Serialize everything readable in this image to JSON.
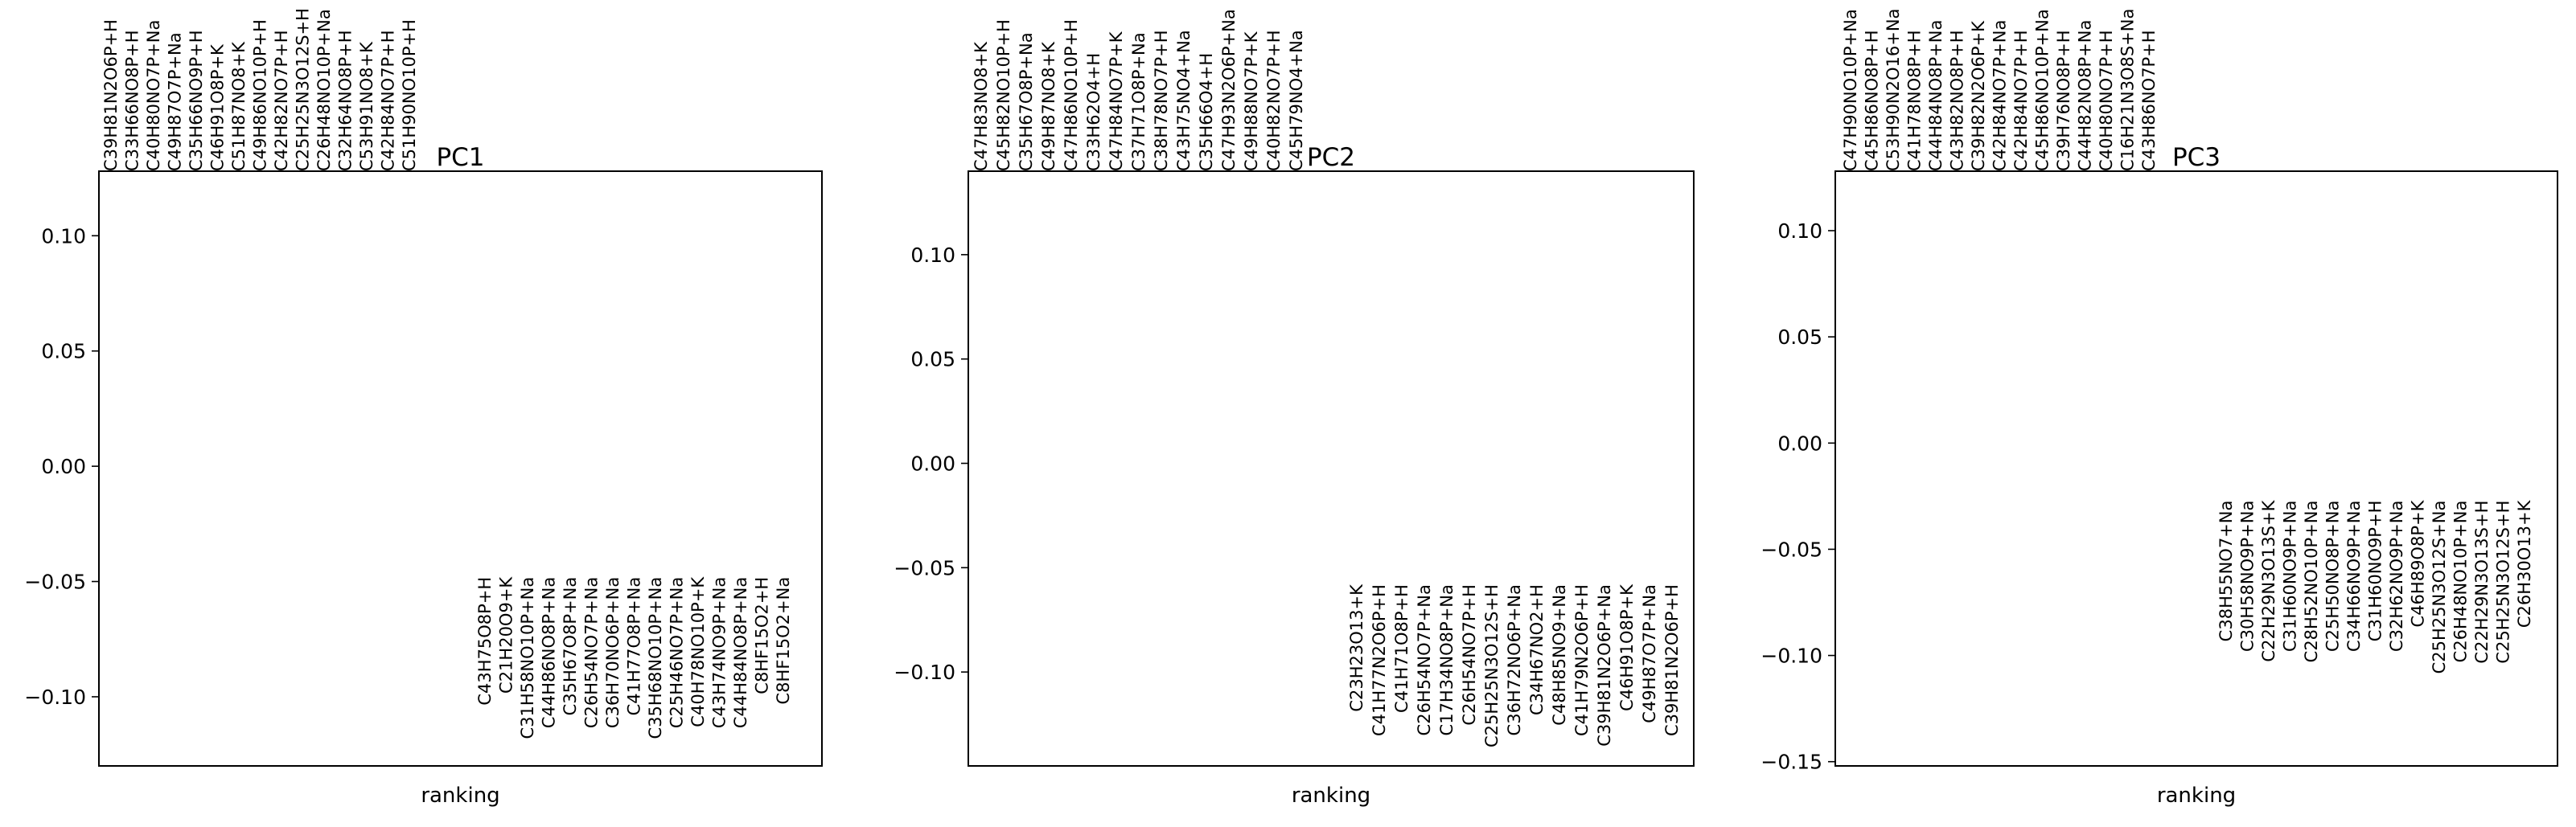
{
  "chart_data": [
    {
      "type": "scatter",
      "title": "PC1",
      "xlabel": "ranking",
      "ylabel": "",
      "ylim": [
        -0.13,
        0.128
      ],
      "yticks": [
        "0.10",
        "0.05",
        "0.00",
        "−0.05",
        "−0.10"
      ],
      "ytick_values": [
        0.1,
        0.05,
        0.0,
        -0.05,
        -0.1
      ],
      "ellipsis": "...",
      "top_labels": [
        "C39H81N2O6P+H",
        "C33H66NO8P+H",
        "C40H80NO7P+Na",
        "C49H87O7P+Na",
        "C35H66NO9P+H",
        "C46H91O8P+K",
        "C51H87NO8+K",
        "C49H86NO10P+H",
        "C42H82NO7P+H",
        "C25H25N3O12S+H",
        "C26H48NO10P+Na",
        "C32H64NO8P+H",
        "C53H91NO8+K",
        "C42H84NO7P+H",
        "C51H90NO10P+H"
      ],
      "top_values": [
        0.128,
        0.128,
        0.128,
        0.128,
        0.128,
        0.128,
        0.128,
        0.128,
        0.128,
        0.128,
        0.128,
        0.128,
        0.128,
        0.128,
        0.128
      ],
      "bottom_labels": [
        "C43H75O8P+H",
        "C21H20O9+K",
        "C31H58NO10P+Na",
        "C44H86NO8P+Na",
        "C35H67O8P+Na",
        "C26H54NO7P+Na",
        "C36H70NO6P+Na",
        "C41H77O8P+Na",
        "C35H68NO10P+Na",
        "C25H46NO7P+Na",
        "C40H78NO10P+K",
        "C43H74NO9P+Na",
        "C44H84NO8P+Na",
        "C8HF15O2+H",
        "C8HF15O2+Na"
      ],
      "bottom_values": [
        -0.048,
        -0.048,
        -0.048,
        -0.048,
        -0.048,
        -0.048,
        -0.048,
        -0.048,
        -0.048,
        -0.048,
        -0.048,
        -0.048,
        -0.048,
        -0.048,
        -0.048
      ]
    },
    {
      "type": "scatter",
      "title": "PC2",
      "xlabel": "ranking",
      "ylabel": "",
      "ylim": [
        -0.145,
        0.14
      ],
      "yticks": [
        "0.10",
        "0.05",
        "0.00",
        "−0.05",
        "−0.10"
      ],
      "ytick_values": [
        0.1,
        0.05,
        0.0,
        -0.05,
        -0.1
      ],
      "ellipsis": "...",
      "top_labels": [
        "C47H83NO8+K",
        "C45H82NO10P+H",
        "C35H67O8P+Na",
        "C49H87NO8+K",
        "C47H86NO10P+H",
        "C33H62O4+H",
        "C47H84NO7P+K",
        "C37H71O8P+Na",
        "C38H78NO7P+H",
        "C43H75NO4+Na",
        "C35H66O4+H",
        "C47H93N2O6P+Na",
        "C49H88NO7P+K",
        "C40H82NO7P+H",
        "C45H79NO4+Na"
      ],
      "top_values": [
        0.14,
        0.14,
        0.14,
        0.14,
        0.14,
        0.14,
        0.14,
        0.14,
        0.14,
        0.14,
        0.14,
        0.14,
        0.14,
        0.14,
        0.14
      ],
      "bottom_labels": [
        "C23H23O13+K",
        "C41H77N2O6P+H",
        "C41H71O8P+H",
        "C26H54NO7P+Na",
        "C17H34NO8P+Na",
        "C26H54NO7P+H",
        "C25H25N3O12S+H",
        "C36H72NO6P+Na",
        "C34H67NO2+H",
        "C48H85NO9+Na",
        "C41H79N2O6P+H",
        "C39H81N2O6P+Na",
        "C46H91O8P+K",
        "C49H87O7P+Na",
        "C39H81N2O6P+H"
      ],
      "bottom_values": [
        -0.058,
        -0.058,
        -0.058,
        -0.058,
        -0.058,
        -0.058,
        -0.058,
        -0.058,
        -0.058,
        -0.058,
        -0.058,
        -0.058,
        -0.058,
        -0.058,
        -0.058
      ]
    },
    {
      "type": "scatter",
      "title": "PC3",
      "xlabel": "ranking",
      "ylabel": "",
      "ylim": [
        -0.152,
        0.128
      ],
      "yticks": [
        "0.10",
        "0.05",
        "0.00",
        "−0.05",
        "−0.10",
        "−0.15"
      ],
      "ytick_values": [
        0.1,
        0.05,
        0.0,
        -0.05,
        -0.1,
        -0.15
      ],
      "ellipsis": "...",
      "top_labels": [
        "C47H90NO10P+Na",
        "C45H86NO8P+H",
        "C53H90N2O16+Na",
        "C41H78NO8P+H",
        "C44H84NO8P+Na",
        "C43H82NO8P+H",
        "C39H82N2O6P+K",
        "C42H84NO7P+Na",
        "C42H84NO7P+H",
        "C45H86NO10P+Na",
        "C39H76NO8P+H",
        "C44H82NO8P+Na",
        "C40H80NO7P+H",
        "C16H21N3O8S+Na",
        "C43H86NO7P+H"
      ],
      "top_values": [
        0.128,
        0.128,
        0.128,
        0.128,
        0.128,
        0.128,
        0.128,
        0.128,
        0.128,
        0.128,
        0.128,
        0.128,
        0.128,
        0.128,
        0.128
      ],
      "bottom_labels": [
        "C38H55NO7+Na",
        "C30H58NO9P+Na",
        "C22H29N3O13S+K",
        "C31H60NO9P+Na",
        "C28H52NO10P+Na",
        "C25H50NO8P+Na",
        "C34H66NO9P+Na",
        "C31H60NO9P+H",
        "C32H62NO9P+Na",
        "C46H89O8P+K",
        "C25H25N3O12S+Na",
        "C26H48NO10P+Na",
        "C22H29N3O13S+H",
        "C25H25N3O12S+H",
        "C26H30O13+K"
      ],
      "bottom_values": [
        -0.027,
        -0.027,
        -0.027,
        -0.027,
        -0.027,
        -0.027,
        -0.027,
        -0.027,
        -0.027,
        -0.027,
        -0.027,
        -0.027,
        -0.027,
        -0.027,
        -0.027
      ]
    }
  ]
}
